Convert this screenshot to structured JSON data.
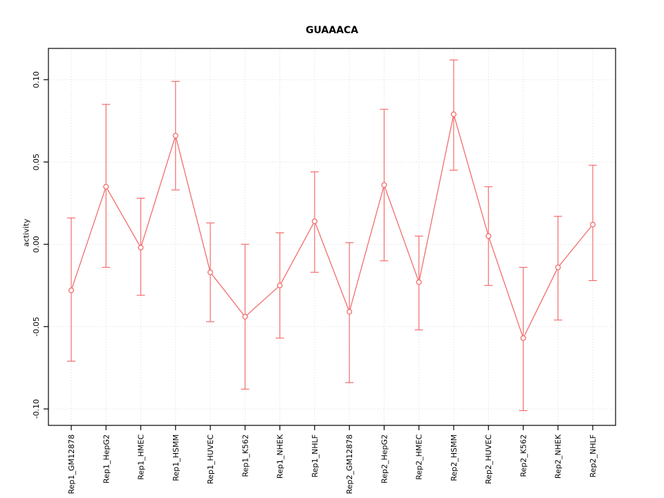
{
  "chart_data": {
    "type": "line",
    "title": "GUAAACA",
    "ylabel": "activity",
    "xlabel": "",
    "categories": [
      "Rep1_GM12878",
      "Rep1_HepG2",
      "Rep1_HMEC",
      "Rep1_HSMM",
      "Rep1_HUVEC",
      "Rep1_K562",
      "Rep1_NHEK",
      "Rep1_NHLF",
      "Rep2_GM12878",
      "Rep2_HepG2",
      "Rep2_HMEC",
      "Rep2_HSMM",
      "Rep2_HUVEC",
      "Rep2_K562",
      "Rep2_NHEK",
      "Rep2_NHLF"
    ],
    "series": [
      {
        "name": "activity",
        "values": [
          -0.028,
          0.035,
          -0.002,
          0.066,
          -0.017,
          -0.044,
          -0.025,
          0.014,
          -0.041,
          0.036,
          -0.023,
          0.079,
          0.005,
          -0.057,
          -0.014,
          0.012
        ],
        "error_low": [
          -0.071,
          -0.014,
          -0.031,
          0.033,
          -0.047,
          -0.088,
          -0.057,
          -0.017,
          -0.084,
          -0.01,
          -0.052,
          0.045,
          -0.025,
          -0.101,
          -0.046,
          -0.022
        ],
        "error_high": [
          0.016,
          0.085,
          0.028,
          0.099,
          0.013,
          0.0,
          0.007,
          0.044,
          0.001,
          0.082,
          0.005,
          0.112,
          0.035,
          -0.014,
          0.017,
          0.048
        ]
      }
    ],
    "ylim": [
      -0.11,
      0.119
    ],
    "yticks": [
      -0.1,
      -0.05,
      0.0,
      0.05,
      0.1
    ],
    "ytick_labels": [
      "-0.10",
      "-0.05",
      "0.00",
      "0.05",
      "0.10"
    ],
    "grid": true,
    "legend": "none",
    "line_color": "#f26d6d",
    "grid_color": "#d9d9d9",
    "axis_color": "#000000"
  }
}
